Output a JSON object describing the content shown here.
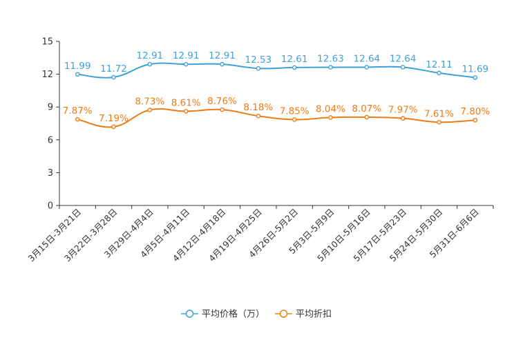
{
  "chart_data": {
    "type": "line",
    "title": "",
    "xlabel": "",
    "ylabel": "",
    "ylim": [
      0,
      15
    ],
    "yticks": [
      "0",
      "3",
      "6",
      "9",
      "12",
      "15"
    ],
    "grid": false,
    "legend_position": "bottom-center",
    "categories": [
      "3月15日-3月21日",
      "3月22日-3月28日",
      "3月29日-4月4日",
      "4月5日-4月11日",
      "4月12日-4月18日",
      "4月19日-4月25日",
      "4月26日-5月2日",
      "5月3日-5月9日",
      "5月10日-5月16日",
      "5月17日-5月23日",
      "5月24日-5月30日",
      "5月31日-6月6日"
    ],
    "series": [
      {
        "name": "平均价格（万）",
        "color": "#3ea0d8",
        "values": [
          11.99,
          11.72,
          12.91,
          12.91,
          12.91,
          12.53,
          12.61,
          12.63,
          12.64,
          12.64,
          12.11,
          11.69
        ],
        "labels": [
          "11.99",
          "11.72",
          "12.91",
          "12.91",
          "12.91",
          "12.53",
          "12.61",
          "12.63",
          "12.64",
          "12.64",
          "12.11",
          "11.69"
        ]
      },
      {
        "name": "平均折扣",
        "color": "#f07b14",
        "values": [
          7.87,
          7.19,
          8.73,
          8.61,
          8.76,
          8.18,
          7.85,
          8.04,
          8.07,
          7.97,
          7.61,
          7.8
        ],
        "labels": [
          "7.87%",
          "7.19%",
          "8.73%",
          "8.61%",
          "8.76%",
          "8.18%",
          "7.85%",
          "8.04%",
          "8.07%",
          "7.97%",
          "7.61%",
          "7.80%"
        ]
      }
    ]
  }
}
